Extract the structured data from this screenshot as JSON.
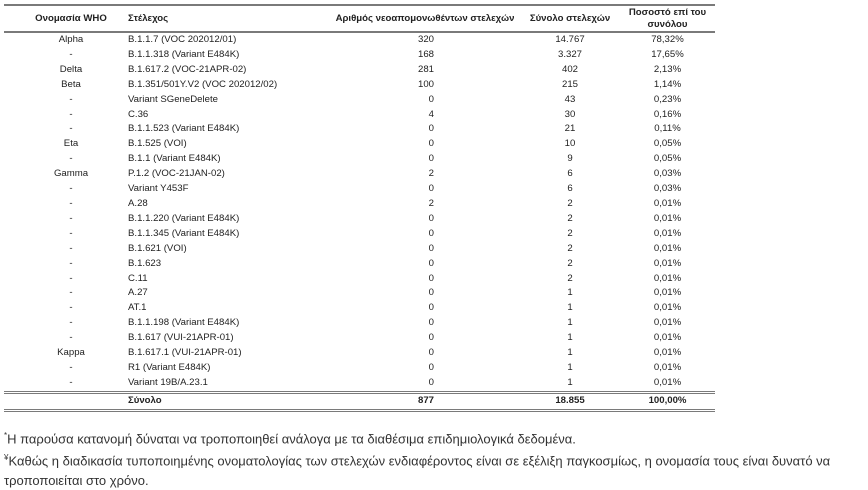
{
  "table": {
    "headers": [
      "Ονομασία WHO",
      "Στέλεχος",
      "Αριθμός νεοαπομονωθέντων στελεχών",
      "Σύνολο στελεχών",
      "Ποσοστό επί του συνόλου"
    ],
    "rows": [
      [
        "Alpha",
        "B.1.1.7 (VOC 202012/01)",
        "320",
        "14.767",
        "78,32%"
      ],
      [
        "-",
        "B.1.1.318 (Variant E484K)",
        "168",
        "3.327",
        "17,65%"
      ],
      [
        "Delta",
        "B.1.617.2 (VOC-21APR-02)",
        "281",
        "402",
        "2,13%"
      ],
      [
        "Beta",
        "B.1.351/501Y.V2 (VOC 202012/02)",
        "100",
        "215",
        "1,14%"
      ],
      [
        "-",
        "Variant SGeneDelete",
        "0",
        "43",
        "0,23%"
      ],
      [
        "-",
        "C.36",
        "4",
        "30",
        "0,16%"
      ],
      [
        "-",
        "B.1.1.523 (Variant E484K)",
        "0",
        "21",
        "0,11%"
      ],
      [
        "Eta",
        "B.1.525 (VOI)",
        "0",
        "10",
        "0,05%"
      ],
      [
        "-",
        "B.1.1 (Variant E484K)",
        "0",
        "9",
        "0,05%"
      ],
      [
        "Gamma",
        "P.1.2 (VOC-21JAN-02)",
        "2",
        "6",
        "0,03%"
      ],
      [
        "-",
        "Variant Y453F",
        "0",
        "6",
        "0,03%"
      ],
      [
        "-",
        "A.28",
        "2",
        "2",
        "0,01%"
      ],
      [
        "-",
        "B.1.1.220 (Variant E484K)",
        "0",
        "2",
        "0,01%"
      ],
      [
        "-",
        "B.1.1.345 (Variant E484K)",
        "0",
        "2",
        "0,01%"
      ],
      [
        "-",
        "B.1.621 (VOI)",
        "0",
        "2",
        "0,01%"
      ],
      [
        "-",
        "B.1.623",
        "0",
        "2",
        "0,01%"
      ],
      [
        "-",
        "C.11",
        "0",
        "2",
        "0,01%"
      ],
      [
        "-",
        "A.27",
        "0",
        "1",
        "0,01%"
      ],
      [
        "-",
        "AT.1",
        "0",
        "1",
        "0,01%"
      ],
      [
        "-",
        "B.1.1.198 (Variant E484K)",
        "0",
        "1",
        "0,01%"
      ],
      [
        "-",
        "B.1.617 (VUI-21APR-01)",
        "0",
        "1",
        "0,01%"
      ],
      [
        "Kappa",
        "B.1.617.1 (VUI-21APR-01)",
        "0",
        "1",
        "0,01%"
      ],
      [
        "-",
        "R1 (Variant E484K)",
        "0",
        "1",
        "0,01%"
      ],
      [
        "-",
        "Variant 19B/A.23.1",
        "0",
        "1",
        "0,01%"
      ]
    ],
    "total": {
      "label": "Σύνολο",
      "count": "877",
      "total": "18.855",
      "percent": "100,00%"
    }
  },
  "notes": {
    "note1_mark": "*",
    "note1": "Η παρούσα κατανομή δύναται να τροποποιηθεί ανάλογα με τα διαθέσιμα επιδημιολογικά δεδομένα.",
    "note2_mark": "¥",
    "note2": "Καθώς η διαδικασία τυποποιημένης ονοματολογίας των στελεχών ενδιαφέροντος είναι σε εξέλιξη παγκοσμίως, η ονομασία τους είναι δυνατό να τροποποιείται στο χρόνο."
  }
}
